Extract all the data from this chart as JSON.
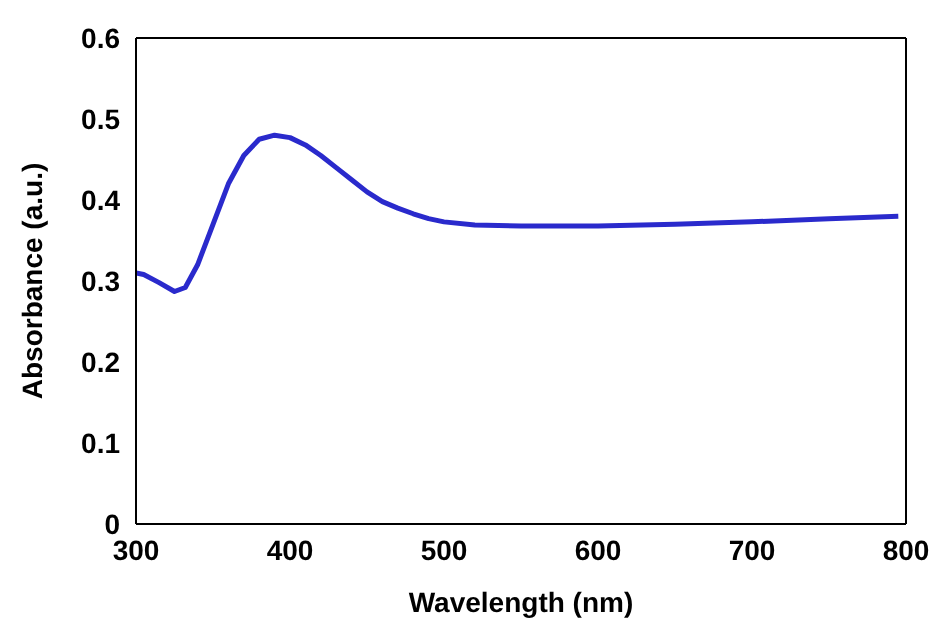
{
  "chart_data": {
    "type": "line",
    "xlabel": "Wavelength (nm)",
    "ylabel": "Absorbance (a.u.)",
    "xlim": [
      300,
      800
    ],
    "xticks": [
      300,
      400,
      500,
      600,
      700,
      800
    ],
    "ylim": [
      0,
      0.6
    ],
    "yticks": [
      0,
      0.1,
      0.2,
      0.3,
      0.4,
      0.5,
      0.6
    ],
    "marker": "none",
    "line_style": "solid",
    "series": [
      {
        "color": "#2a2acc",
        "x": [
          300,
          305,
          315,
          325,
          332,
          340,
          350,
          360,
          370,
          380,
          390,
          400,
          410,
          420,
          430,
          440,
          450,
          460,
          470,
          480,
          490,
          500,
          520,
          550,
          600,
          650,
          700,
          750,
          795
        ],
        "values": [
          0.31,
          0.308,
          0.298,
          0.287,
          0.292,
          0.32,
          0.37,
          0.42,
          0.455,
          0.475,
          0.48,
          0.477,
          0.468,
          0.455,
          0.44,
          0.425,
          0.41,
          0.398,
          0.39,
          0.383,
          0.377,
          0.373,
          0.369,
          0.368,
          0.368,
          0.37,
          0.373,
          0.377,
          0.38
        ]
      }
    ]
  }
}
